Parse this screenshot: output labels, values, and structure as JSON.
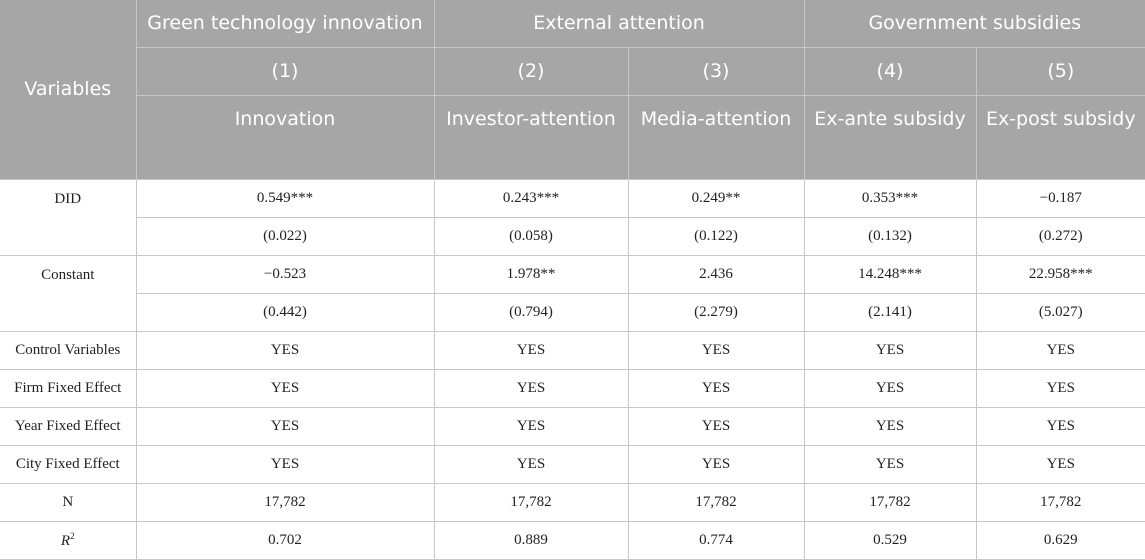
{
  "header": {
    "variables": "Variables",
    "groups": [
      "Green technology innovation",
      "External attention",
      "Government subsidies"
    ],
    "column_numbers": [
      "(1)",
      "(2)",
      "(3)",
      "(4)",
      "(5)"
    ],
    "column_names": [
      "Innovation",
      "Investor-attention",
      "Media-attention",
      "Ex-ante subsidy",
      "Ex-post subsidy"
    ]
  },
  "rows": {
    "did": {
      "label": "DID",
      "coef": [
        "0.549***",
        "0.243***",
        "0.249**",
        "0.353***",
        "−0.187"
      ],
      "se": [
        "(0.022)",
        "(0.058)",
        "(0.122)",
        "(0.132)",
        "(0.272)"
      ]
    },
    "constant": {
      "label": "Constant",
      "coef": [
        "−0.523",
        "1.978**",
        "2.436",
        "14.248***",
        "22.958***"
      ],
      "se": [
        "(0.442)",
        "(0.794)",
        "(2.279)",
        "(2.141)",
        "(5.027)"
      ]
    },
    "control": {
      "label": "Control Variables",
      "values": [
        "YES",
        "YES",
        "YES",
        "YES",
        "YES"
      ]
    },
    "firm_fe": {
      "label": "Firm Fixed Effect",
      "values": [
        "YES",
        "YES",
        "YES",
        "YES",
        "YES"
      ]
    },
    "year_fe": {
      "label": "Year Fixed Effect",
      "values": [
        "YES",
        "YES",
        "YES",
        "YES",
        "YES"
      ]
    },
    "city_fe": {
      "label": "City Fixed Effect",
      "values": [
        "YES",
        "YES",
        "YES",
        "YES",
        "YES"
      ]
    },
    "n": {
      "label": "N",
      "values": [
        "17,782",
        "17,782",
        "17,782",
        "17,782",
        "17,782"
      ]
    },
    "r2": {
      "label": "R",
      "label_sup": "2",
      "values": [
        "0.702",
        "0.889",
        "0.774",
        "0.529",
        "0.629"
      ]
    }
  }
}
